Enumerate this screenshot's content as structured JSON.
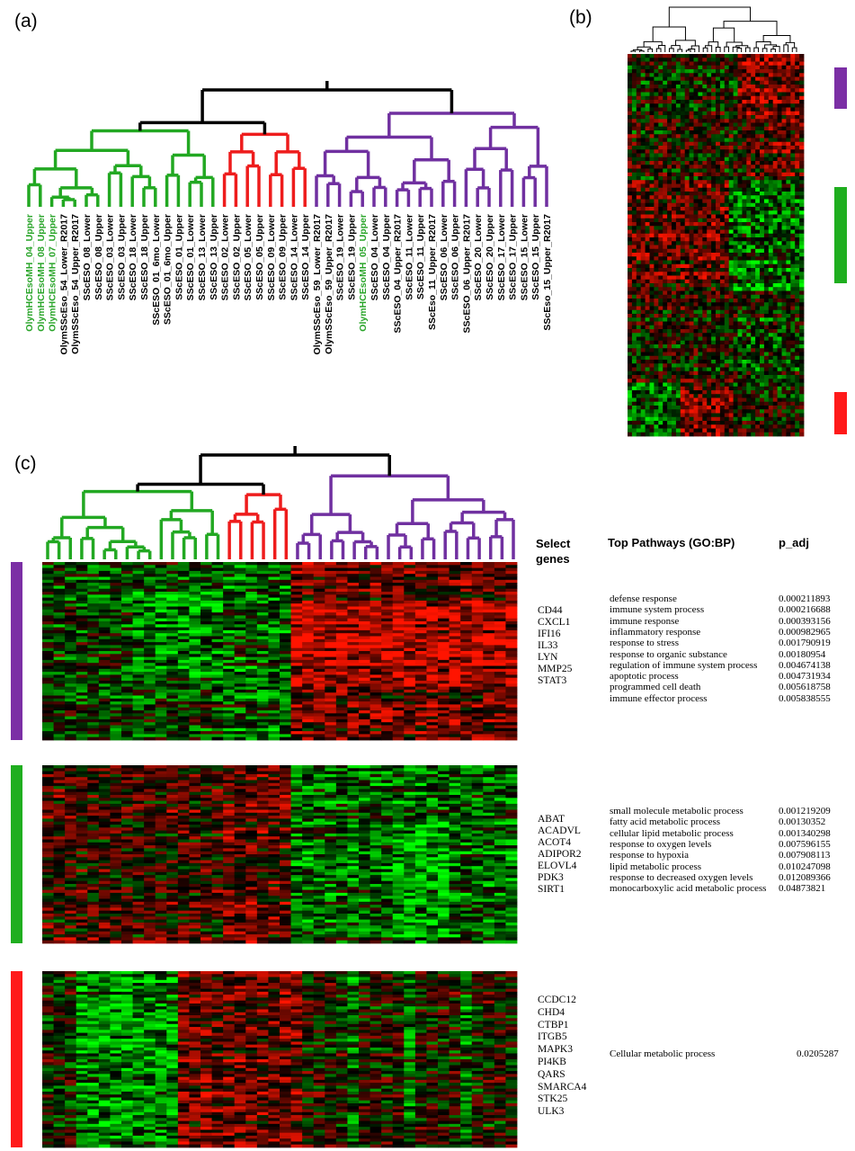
{
  "panel_labels": [
    "(a)",
    "(b)",
    "(c)"
  ],
  "panel_a": {
    "samples": [
      {
        "label": "OlymHCEsoMH_04_Upper",
        "color": "#2aa52a"
      },
      {
        "label": "OlymHCEsoMH_08_Upper",
        "color": "#2aa52a"
      },
      {
        "label": "OlymHCEsoMH_07_Upper",
        "color": "#2aa52a"
      },
      {
        "label": "OlymSScEso_54_Lower_R2017",
        "color": "#000000"
      },
      {
        "label": "OlymSScEso_54_Upper_R2017",
        "color": "#000000"
      },
      {
        "label": "SScESO_08_Lower",
        "color": "#000000"
      },
      {
        "label": "SScESO_08_Upper",
        "color": "#000000"
      },
      {
        "label": "SScESO_03_Lower",
        "color": "#000000"
      },
      {
        "label": "SScESO_03_Upper",
        "color": "#000000"
      },
      {
        "label": "SScESO_18_Lower",
        "color": "#000000"
      },
      {
        "label": "SScESO_18_Upper",
        "color": "#000000"
      },
      {
        "label": "SScESO_01_6mo_Lower",
        "color": "#000000"
      },
      {
        "label": "SScESO_01_6mo_Upper",
        "color": "#000000"
      },
      {
        "label": "SScESO_01_Upper",
        "color": "#000000"
      },
      {
        "label": "SScESO_01_Lower",
        "color": "#000000"
      },
      {
        "label": "SScESO_13_Lower",
        "color": "#000000"
      },
      {
        "label": "SScESO_13_Upper",
        "color": "#000000"
      },
      {
        "label": "SScESO_02_Lower",
        "color": "#000000"
      },
      {
        "label": "SScESO_02_Upper",
        "color": "#000000"
      },
      {
        "label": "SScESO_05_Lower",
        "color": "#000000"
      },
      {
        "label": "SScESO_05_Upper",
        "color": "#000000"
      },
      {
        "label": "SScESO_09_Lower",
        "color": "#000000"
      },
      {
        "label": "SScESO_09_Upper",
        "color": "#000000"
      },
      {
        "label": "SScESO_14_Lower",
        "color": "#000000"
      },
      {
        "label": "SScESO_14_Upper",
        "color": "#000000"
      },
      {
        "label": "OlymSScEso_59_Lower_R2017",
        "color": "#000000"
      },
      {
        "label": "OlymSScEso_59_Upper_R2017",
        "color": "#000000"
      },
      {
        "label": "SScESO_19_Lower",
        "color": "#000000"
      },
      {
        "label": "SScESO_19_Upper",
        "color": "#000000"
      },
      {
        "label": "OlymHCEsoMH_05_Upper",
        "color": "#2aa52a"
      },
      {
        "label": "SScESO_04_Lower",
        "color": "#000000"
      },
      {
        "label": "SScESO_04_Upper",
        "color": "#000000"
      },
      {
        "label": "SScESO_04_Upper_R2017",
        "color": "#000000"
      },
      {
        "label": "SScESO_11_Lower",
        "color": "#000000"
      },
      {
        "label": "SScESO_11_Upper",
        "color": "#000000"
      },
      {
        "label": "SScEso_11_Upper_R2017",
        "color": "#000000"
      },
      {
        "label": "SScESO_06_Lower",
        "color": "#000000"
      },
      {
        "label": "SScESO_06_Upper",
        "color": "#000000"
      },
      {
        "label": "SScESO_06_Upper_R2017",
        "color": "#000000"
      },
      {
        "label": "SScESO_20_Lower",
        "color": "#000000"
      },
      {
        "label": "SScESO_20_Upper",
        "color": "#000000"
      },
      {
        "label": "SScESO_17_Lower",
        "color": "#000000"
      },
      {
        "label": "SScESO_17_Upper",
        "color": "#000000"
      },
      {
        "label": "SScESO_15_Lower",
        "color": "#000000"
      },
      {
        "label": "SScESO_15_Upper",
        "color": "#000000"
      },
      {
        "label": "SScEso_15_Upper_R2017",
        "color": "#000000"
      }
    ]
  },
  "panel_c": {
    "headers": {
      "genes": "Select genes",
      "pathways": "Top Pathways (GO:BP)",
      "p_adj": "p_adj"
    },
    "clusters": [
      {
        "genes": [
          "CD44",
          "CXCL1",
          "IFI16",
          "IL33",
          "LYN",
          "MMP25",
          "STAT3"
        ],
        "pathways": [
          {
            "name": "defense response",
            "p_adj": "0.000211893"
          },
          {
            "name": "immune system process",
            "p_adj": "0.000216688"
          },
          {
            "name": "immune response",
            "p_adj": "0.000393156"
          },
          {
            "name": "inflammatory response",
            "p_adj": "0.000982965"
          },
          {
            "name": "response to stress",
            "p_adj": "0.001790919"
          },
          {
            "name": "response to organic substance",
            "p_adj": "0.00180954"
          },
          {
            "name": "regulation of immune system process",
            "p_adj": "0.004674138"
          },
          {
            "name": "apoptotic process",
            "p_adj": "0.004731934"
          },
          {
            "name": "programmed cell death",
            "p_adj": "0.005618758"
          },
          {
            "name": "immune effector process",
            "p_adj": "0.005838555"
          }
        ]
      },
      {
        "genes": [
          "ABAT",
          "ACADVL",
          "ACOT4",
          "ADIPOR2",
          "ELOVL4",
          "PDK3",
          "SIRT1"
        ],
        "pathways": [
          {
            "name": "small molecule metabolic process",
            "p_adj": "0.001219209"
          },
          {
            "name": "fatty acid metabolic process",
            "p_adj": "0.00130352"
          },
          {
            "name": "cellular lipid metabolic process",
            "p_adj": "0.001340298"
          },
          {
            "name": "response to oxygen levels",
            "p_adj": "0.007596155"
          },
          {
            "name": "response to hypoxia",
            "p_adj": "0.007908113"
          },
          {
            "name": "lipid metabolic process",
            "p_adj": "0.010247098"
          },
          {
            "name": "response to decreased oxygen levels",
            "p_adj": "0.012089366"
          },
          {
            "name": "monocarboxylic acid metabolic process",
            "p_adj": "0.04873821"
          }
        ]
      },
      {
        "genes": [
          "CCDC12",
          "CHD4",
          "CTBP1",
          "ITGB5",
          "MAPK3",
          "PI4KB",
          "QARS",
          "SMARCA4",
          "STK25",
          "ULK3"
        ],
        "pathways": [
          {
            "name": "Cellular metabolic process",
            "p_adj": "0.0205287"
          }
        ]
      }
    ]
  }
}
